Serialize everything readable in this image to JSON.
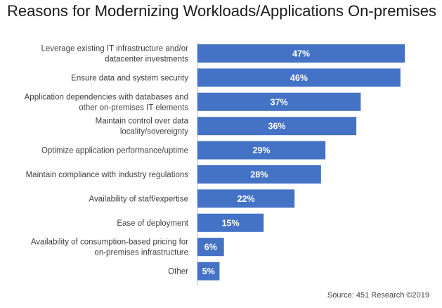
{
  "chart_data": {
    "type": "bar",
    "orientation": "horizontal",
    "title": "Reasons for Modernizing Workloads/Applications On-premises",
    "categories": [
      [
        "Leverage existing IT infrastructure and/or",
        "datacenter investments"
      ],
      [
        "Ensure data and system security"
      ],
      [
        "Application dependencies with databases and",
        "other on-premises IT elements"
      ],
      [
        "Maintain control over data",
        "locality/sovereignty"
      ],
      [
        "Optimize application performance/uptime"
      ],
      [
        "Maintain compliance with industry regulations"
      ],
      [
        "Availability of staff/expertise"
      ],
      [
        "Ease of deployment"
      ],
      [
        "Availability of consumption-based pricing for",
        "on-premises infrastructure"
      ],
      [
        "Other"
      ]
    ],
    "values": [
      47,
      46,
      37,
      36,
      29,
      28,
      22,
      15,
      6,
      5
    ],
    "value_labels": [
      "47%",
      "46%",
      "37%",
      "36%",
      "29%",
      "28%",
      "22%",
      "15%",
      "6%",
      "5%"
    ],
    "bar_color": "#4472C4",
    "source": "Source: 451 Research ©2019"
  }
}
